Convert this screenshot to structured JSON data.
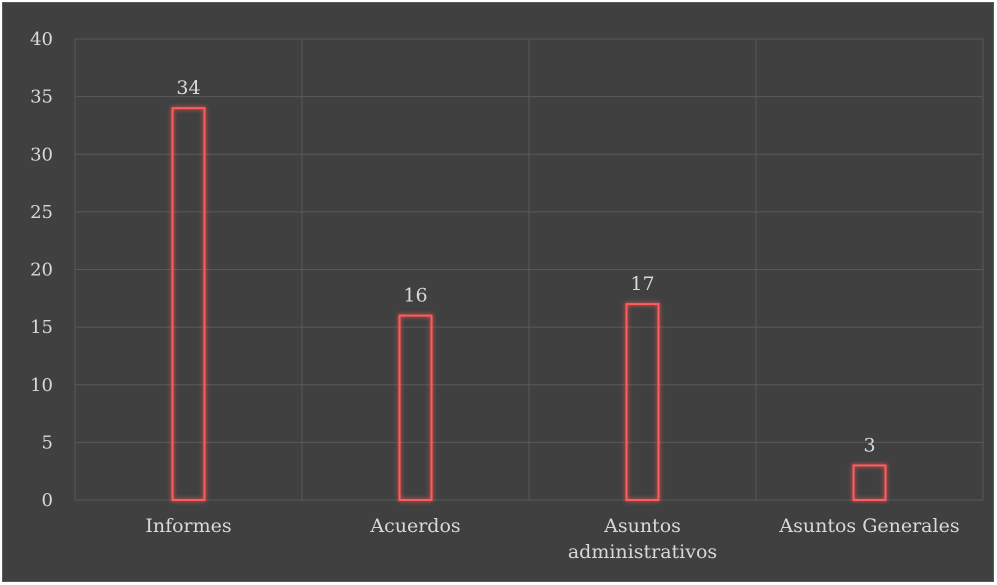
{
  "chart_data": {
    "type": "bar",
    "categories": [
      [
        "Informes"
      ],
      [
        "Acuerdos"
      ],
      [
        "Asuntos",
        "administrativos"
      ],
      [
        "Asuntos Generales"
      ]
    ],
    "values": [
      34,
      16,
      17,
      3
    ],
    "data_labels": [
      "34",
      "16",
      "17",
      "3"
    ],
    "ylim": [
      0,
      40
    ],
    "yticks": [
      0,
      5,
      10,
      15,
      20,
      25,
      30,
      35,
      40
    ],
    "grid": true,
    "title": "",
    "xlabel": "",
    "ylabel": "",
    "colors": {
      "background": "#404040",
      "bar_outline": "#ff5b5b",
      "bar_glow": "#c0504d",
      "gridline": "#595959",
      "text": "#d9d9d9"
    }
  }
}
